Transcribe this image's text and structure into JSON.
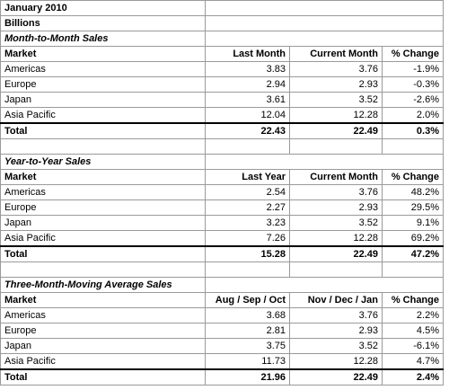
{
  "title": "January 2010",
  "unit": "Billions",
  "sections": [
    {
      "title": "Month-to-Month Sales",
      "headers": [
        "Market",
        "Last Month",
        "Current Month",
        "% Change"
      ],
      "rows": [
        [
          "Americas",
          "3.83",
          "3.76",
          "-1.9%"
        ],
        [
          "Europe",
          "2.94",
          "2.93",
          "-0.3%"
        ],
        [
          "Japan",
          "3.61",
          "3.52",
          "-2.6%"
        ],
        [
          "Asia Pacific",
          "12.04",
          "12.28",
          "2.0%"
        ]
      ],
      "total": [
        "Total",
        "22.43",
        "22.49",
        "0.3%"
      ]
    },
    {
      "title": "Year-to-Year Sales",
      "headers": [
        "Market",
        "Last Year",
        "Current Month",
        "% Change"
      ],
      "rows": [
        [
          "Americas",
          "2.54",
          "3.76",
          "48.2%"
        ],
        [
          "Europe",
          "2.27",
          "2.93",
          "29.5%"
        ],
        [
          "Japan",
          "3.23",
          "3.52",
          "9.1%"
        ],
        [
          "Asia Pacific",
          "7.26",
          "12.28",
          "69.2%"
        ]
      ],
      "total": [
        "Total",
        "15.28",
        "22.49",
        "47.2%"
      ]
    },
    {
      "title": "Three-Month-Moving Average Sales",
      "headers": [
        "Market",
        "Aug / Sep / Oct",
        "Nov / Dec / Jan",
        "% Change"
      ],
      "rows": [
        [
          "Americas",
          "3.68",
          "3.76",
          "2.2%"
        ],
        [
          "Europe",
          "2.81",
          "2.93",
          "4.5%"
        ],
        [
          "Japan",
          "3.75",
          "3.52",
          "-6.1%"
        ],
        [
          "Asia Pacific",
          "11.73",
          "12.28",
          "4.7%"
        ]
      ],
      "total": [
        "Total",
        "21.96",
        "22.49",
        "2.4%"
      ]
    }
  ]
}
